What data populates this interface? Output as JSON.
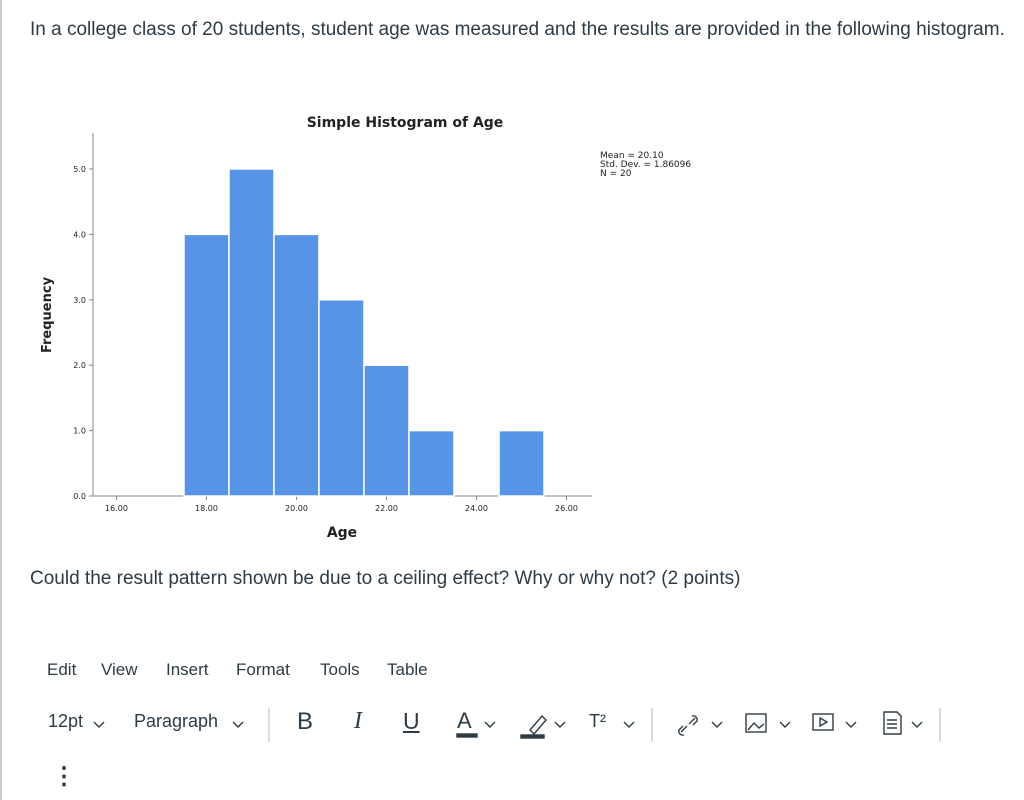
{
  "question": "In a college class of 20 students, student age was measured and the results are provided in the following histogram.",
  "chart_data": {
    "type": "histogram",
    "title": "Simple Histogram of Age",
    "x_label": "Age",
    "y_label": "Frequency",
    "bins": [
      17.5,
      18.5,
      19.5,
      20.5,
      21.5,
      22.5,
      23.5,
      24.5,
      25.5
    ],
    "counts": [
      4,
      5,
      4,
      3,
      2,
      1,
      0,
      1
    ],
    "color": "#5894e6",
    "xlim": [
      15.5,
      26.5
    ],
    "xticks": [
      {
        "value": 16,
        "label": "16.00"
      },
      {
        "value": 18,
        "label": "18.00"
      },
      {
        "value": 20,
        "label": "20.00"
      },
      {
        "value": 22,
        "label": "22.00"
      },
      {
        "value": 24,
        "label": "24.00"
      },
      {
        "value": 26,
        "label": "26.00"
      }
    ],
    "ylim": [
      0,
      5.55
    ],
    "yticks": [
      {
        "value": 0,
        "label": "0.0"
      },
      {
        "value": 1,
        "label": "1.0"
      },
      {
        "value": 2,
        "label": "2.0"
      },
      {
        "value": 3,
        "label": "3.0"
      },
      {
        "value": 4,
        "label": "4.0"
      },
      {
        "value": 5,
        "label": "5.0"
      }
    ],
    "grid": false,
    "stats": [
      "Mean = 20.10",
      "Std. Dev. = 1.86096",
      "N = 20"
    ]
  },
  "question2": "Could the result pattern shown be due to a ceiling effect? Why or why not? (2 points)",
  "menu": [
    "Edit",
    "View",
    "Insert",
    "Format",
    "Tools",
    "Table"
  ],
  "toolbar": {
    "font_size": "12pt",
    "block": "Paragraph",
    "bold": "B",
    "italic": "I",
    "underline": "U",
    "text_color": "A",
    "superscript": "T²",
    "more": "⋮"
  }
}
